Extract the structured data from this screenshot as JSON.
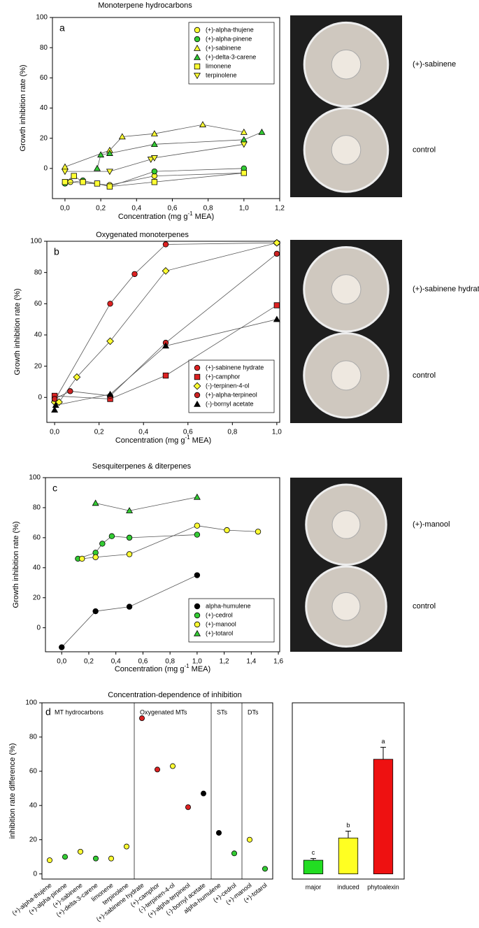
{
  "chart_data": [
    {
      "type": "line",
      "panel": "a",
      "title": "Monoterpene hydrocarbons",
      "ylabel": "Growth inhibition rate (%)",
      "xlabel": [
        "Concentration (mg g",
        "-1",
        " MEA)"
      ],
      "xlim": [
        -0.07,
        1.2
      ],
      "ylim": [
        -20,
        100
      ],
      "xticks": [
        {
          "value": 0,
          "label": "0,0"
        },
        {
          "value": 0.2,
          "label": "0,2"
        },
        {
          "value": 0.4,
          "label": "0,4"
        },
        {
          "value": 0.6,
          "label": "0,6"
        },
        {
          "value": 0.8,
          "label": "0,8"
        },
        {
          "value": 1,
          "label": "1,0"
        },
        {
          "value": 1.2,
          "label": "1,2"
        }
      ],
      "yticks": [
        0,
        20,
        40,
        60,
        80,
        100
      ],
      "legend": "upper right",
      "series": [
        {
          "name": "(+)-alpha-thujene",
          "color": "#ffff33",
          "marker": "circle",
          "x": [
            0,
            0.03,
            0.25,
            0.5,
            1.0
          ],
          "values": [
            -10,
            -9,
            -11,
            -5,
            -3
          ]
        },
        {
          "name": "(+)-alpha-pinene",
          "color": "#33cc33",
          "marker": "circle",
          "x": [
            0,
            0.1,
            0.25,
            0.5,
            1.0
          ],
          "values": [
            -10,
            -8,
            -12,
            -2,
            0
          ]
        },
        {
          "name": "(+)-sabinene",
          "color": "#ffff33",
          "marker": "triangle-up",
          "x": [
            0,
            0.25,
            0.32,
            0.5,
            0.77,
            1.0
          ],
          "values": [
            1,
            12,
            21,
            23,
            29,
            24
          ]
        },
        {
          "name": "(+)-delta-3-carene",
          "color": "#33cc33",
          "marker": "triangle-up",
          "x": [
            0.18,
            0.2,
            0.25,
            0.5,
            1.0,
            1.1
          ],
          "values": [
            0,
            9,
            10,
            16,
            19,
            24
          ]
        },
        {
          "name": "limonene",
          "color": "#ffff33",
          "marker": "square",
          "x": [
            0,
            0.05,
            0.1,
            0.18,
            0.25,
            0.5,
            1.0
          ],
          "values": [
            -9,
            -5,
            -9,
            -10,
            -12,
            -9,
            -3
          ]
        },
        {
          "name": "terpinolene",
          "color": "#ffff33",
          "marker": "triangle-down",
          "x": [
            0,
            0.25,
            0.48,
            0.5,
            1.0
          ],
          "values": [
            -2,
            -2,
            6,
            7,
            16
          ]
        }
      ]
    },
    {
      "type": "line",
      "panel": "b",
      "title": "Oxygenated monoterpenes",
      "ylabel": "Growth inhibition rate (%)",
      "xlabel": [
        "Concentration (mg g",
        "-1",
        " MEA)"
      ],
      "xlim": [
        -0.035,
        1.013
      ],
      "ylim": [
        -16,
        100
      ],
      "xticks": [
        {
          "value": 0,
          "label": "0,0"
        },
        {
          "value": 0.2,
          "label": "0,2"
        },
        {
          "value": 0.4,
          "label": "0,4"
        },
        {
          "value": 0.6,
          "label": "0,6"
        },
        {
          "value": 0.8,
          "label": "0,8"
        },
        {
          "value": 1,
          "label": "1,0"
        }
      ],
      "yticks": [
        0,
        20,
        40,
        60,
        80,
        100
      ],
      "legend": "lower right",
      "series": [
        {
          "name": "(+)-sabinene hydrate",
          "color": "#dd2222",
          "marker": "circle",
          "x": [
            0,
            0.25,
            0.36,
            0.5,
            1.0
          ],
          "values": [
            -2,
            60,
            79,
            98,
            99
          ]
        },
        {
          "name": "(+)-camphor",
          "color": "#dd2222",
          "marker": "square",
          "x": [
            0,
            0.25,
            0.5,
            1.0
          ],
          "values": [
            1,
            -1,
            14,
            59
          ]
        },
        {
          "name": "(-)-terpinen-4-ol",
          "color": "#ffff33",
          "marker": "diamond",
          "x": [
            0,
            0.02,
            0.1,
            0.25,
            0.5,
            1.0
          ],
          "values": [
            -3,
            -3,
            13,
            36,
            81,
            99
          ]
        },
        {
          "name": "(+)-alpha-terpineol",
          "color": "#cc2222",
          "marker": "circle",
          "x": [
            0,
            0.07,
            0.25,
            0.5,
            1.0
          ],
          "values": [
            -1,
            4,
            1,
            35,
            92
          ]
        },
        {
          "name": "(-)-bornyl acetate",
          "color": "#000000",
          "marker": "triangle-up",
          "x": [
            0,
            0.005,
            0.25,
            0.5,
            1.0
          ],
          "values": [
            -8,
            -5,
            2,
            33,
            50
          ]
        }
      ]
    },
    {
      "type": "line",
      "panel": "c",
      "title": "Sesquiterpenes & diterpenes",
      "ylabel": "Growth inhibition rate (%)",
      "xlabel": [
        "Concentration (mg g",
        "-1",
        " MEA)"
      ],
      "xlim": [
        -0.12,
        1.61
      ],
      "ylim": [
        -16,
        100
      ],
      "xticks": [
        {
          "value": 0,
          "label": "0,0"
        },
        {
          "value": 0.2,
          "label": "0,2"
        },
        {
          "value": 0.4,
          "label": "0,4"
        },
        {
          "value": 0.6,
          "label": "0,6"
        },
        {
          "value": 0.8,
          "label": "0,8"
        },
        {
          "value": 1,
          "label": "1,0"
        },
        {
          "value": 1.2,
          "label": "1,2"
        },
        {
          "value": 1.4,
          "label": "1,4"
        },
        {
          "value": 1.6,
          "label": "1,6"
        }
      ],
      "yticks": [
        0,
        20,
        40,
        60,
        80,
        100
      ],
      "legend": "lower right",
      "series": [
        {
          "name": "alpha-humulene",
          "color": "#000000",
          "marker": "circle",
          "x": [
            0,
            0.25,
            0.5,
            1.0
          ],
          "values": [
            -13,
            11,
            14,
            35
          ]
        },
        {
          "name": "(+)-cedrol",
          "color": "#33cc33",
          "marker": "circle",
          "x": [
            0.12,
            0.25,
            0.3,
            0.37,
            0.5,
            1.0
          ],
          "values": [
            46,
            50,
            56,
            61,
            60,
            62
          ]
        },
        {
          "name": "(+)-manool",
          "color": "#ffff33",
          "marker": "circle",
          "x": [
            0.15,
            0.25,
            0.5,
            1.0,
            1.22,
            1.45
          ],
          "values": [
            46,
            47,
            49,
            68,
            65,
            64
          ]
        },
        {
          "name": "(+)-totarol",
          "color": "#33cc33",
          "marker": "triangle-up",
          "x": [
            0.25,
            0.5,
            1.0
          ],
          "values": [
            83,
            78,
            87
          ]
        }
      ]
    },
    {
      "type": "dot",
      "panel": "d",
      "title": "Concentration-dependence of inhibition",
      "ylabel": "inhibition rate difference (%)",
      "ylim": [
        -3,
        100
      ],
      "yticks": [
        0,
        20,
        40,
        60,
        80,
        100
      ],
      "groups": [
        {
          "label": "MT hydrocarbons",
          "categories": [
            "(+)-alpha-thujene",
            "(+)-alpha-pinene",
            "(+)-sabinene",
            "(+)-delta-3-carene",
            "limonene",
            "terpinolene"
          ],
          "values": [
            8,
            10,
            13,
            9,
            9,
            16
          ],
          "colors": [
            "#ffff33",
            "#33cc33",
            "#ffff33",
            "#33cc33",
            "#ffff33",
            "#ffff33"
          ]
        },
        {
          "label": "Oxygenated MTs",
          "categories": [
            "(+)-sabinene hydrate",
            "(+)-camphor",
            "(-)-terpinen-4-ol",
            "(+)-alpha-terpineol",
            "(-)-bornyl acetate"
          ],
          "values": [
            91,
            61,
            63,
            39,
            47
          ],
          "colors": [
            "#dd2222",
            "#dd2222",
            "#ffff33",
            "#dd2222",
            "#000000"
          ]
        },
        {
          "label": "STs",
          "categories": [
            "alpha-humulene",
            "(+)-cedrol"
          ],
          "values": [
            24,
            12
          ],
          "colors": [
            "#000000",
            "#33cc33"
          ]
        },
        {
          "label": "DTs",
          "categories": [
            "(+)-manool",
            "(+)-totarol"
          ],
          "values": [
            20,
            3
          ],
          "colors": [
            "#ffff33",
            "#33cc33"
          ]
        }
      ]
    },
    {
      "type": "bar",
      "categories": [
        "major",
        "induced",
        "phytoalexin"
      ],
      "values": [
        8,
        21,
        67
      ],
      "errors": [
        1,
        4,
        7
      ],
      "colors": [
        "#22dd22",
        "#ffff22",
        "#ee1111"
      ],
      "annotations": [
        "c",
        "b",
        "a"
      ],
      "ylim": [
        -3,
        100
      ]
    }
  ],
  "photos": [
    {
      "treatment": "(+)-sabinene",
      "control": "control"
    },
    {
      "treatment": "(+)-sabinene hydrate",
      "control": "control"
    },
    {
      "treatment": "(+)-manool",
      "control": "control"
    }
  ]
}
